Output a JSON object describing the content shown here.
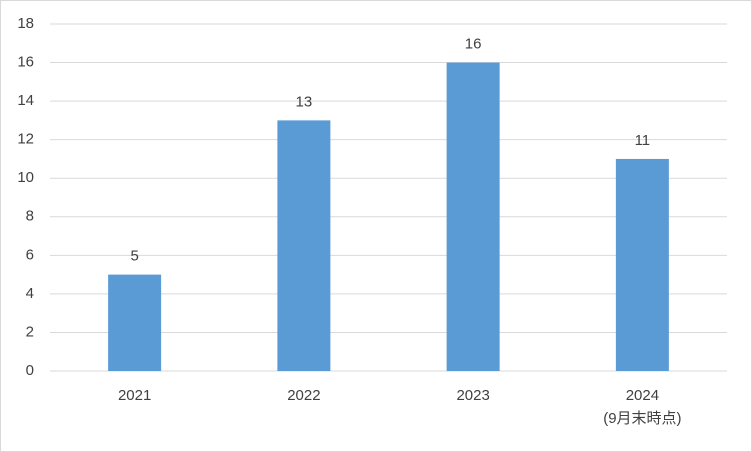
{
  "chart_data": {
    "type": "bar",
    "categories": [
      "2021",
      "2022",
      "2023",
      "2024\n(9月末時点)"
    ],
    "values": [
      5,
      13,
      16,
      11
    ],
    "color": "#5b9bd5",
    "ylim": [
      0,
      18
    ],
    "yticks": [
      0,
      2,
      4,
      6,
      8,
      10,
      12,
      14,
      16,
      18
    ],
    "grid": true
  }
}
